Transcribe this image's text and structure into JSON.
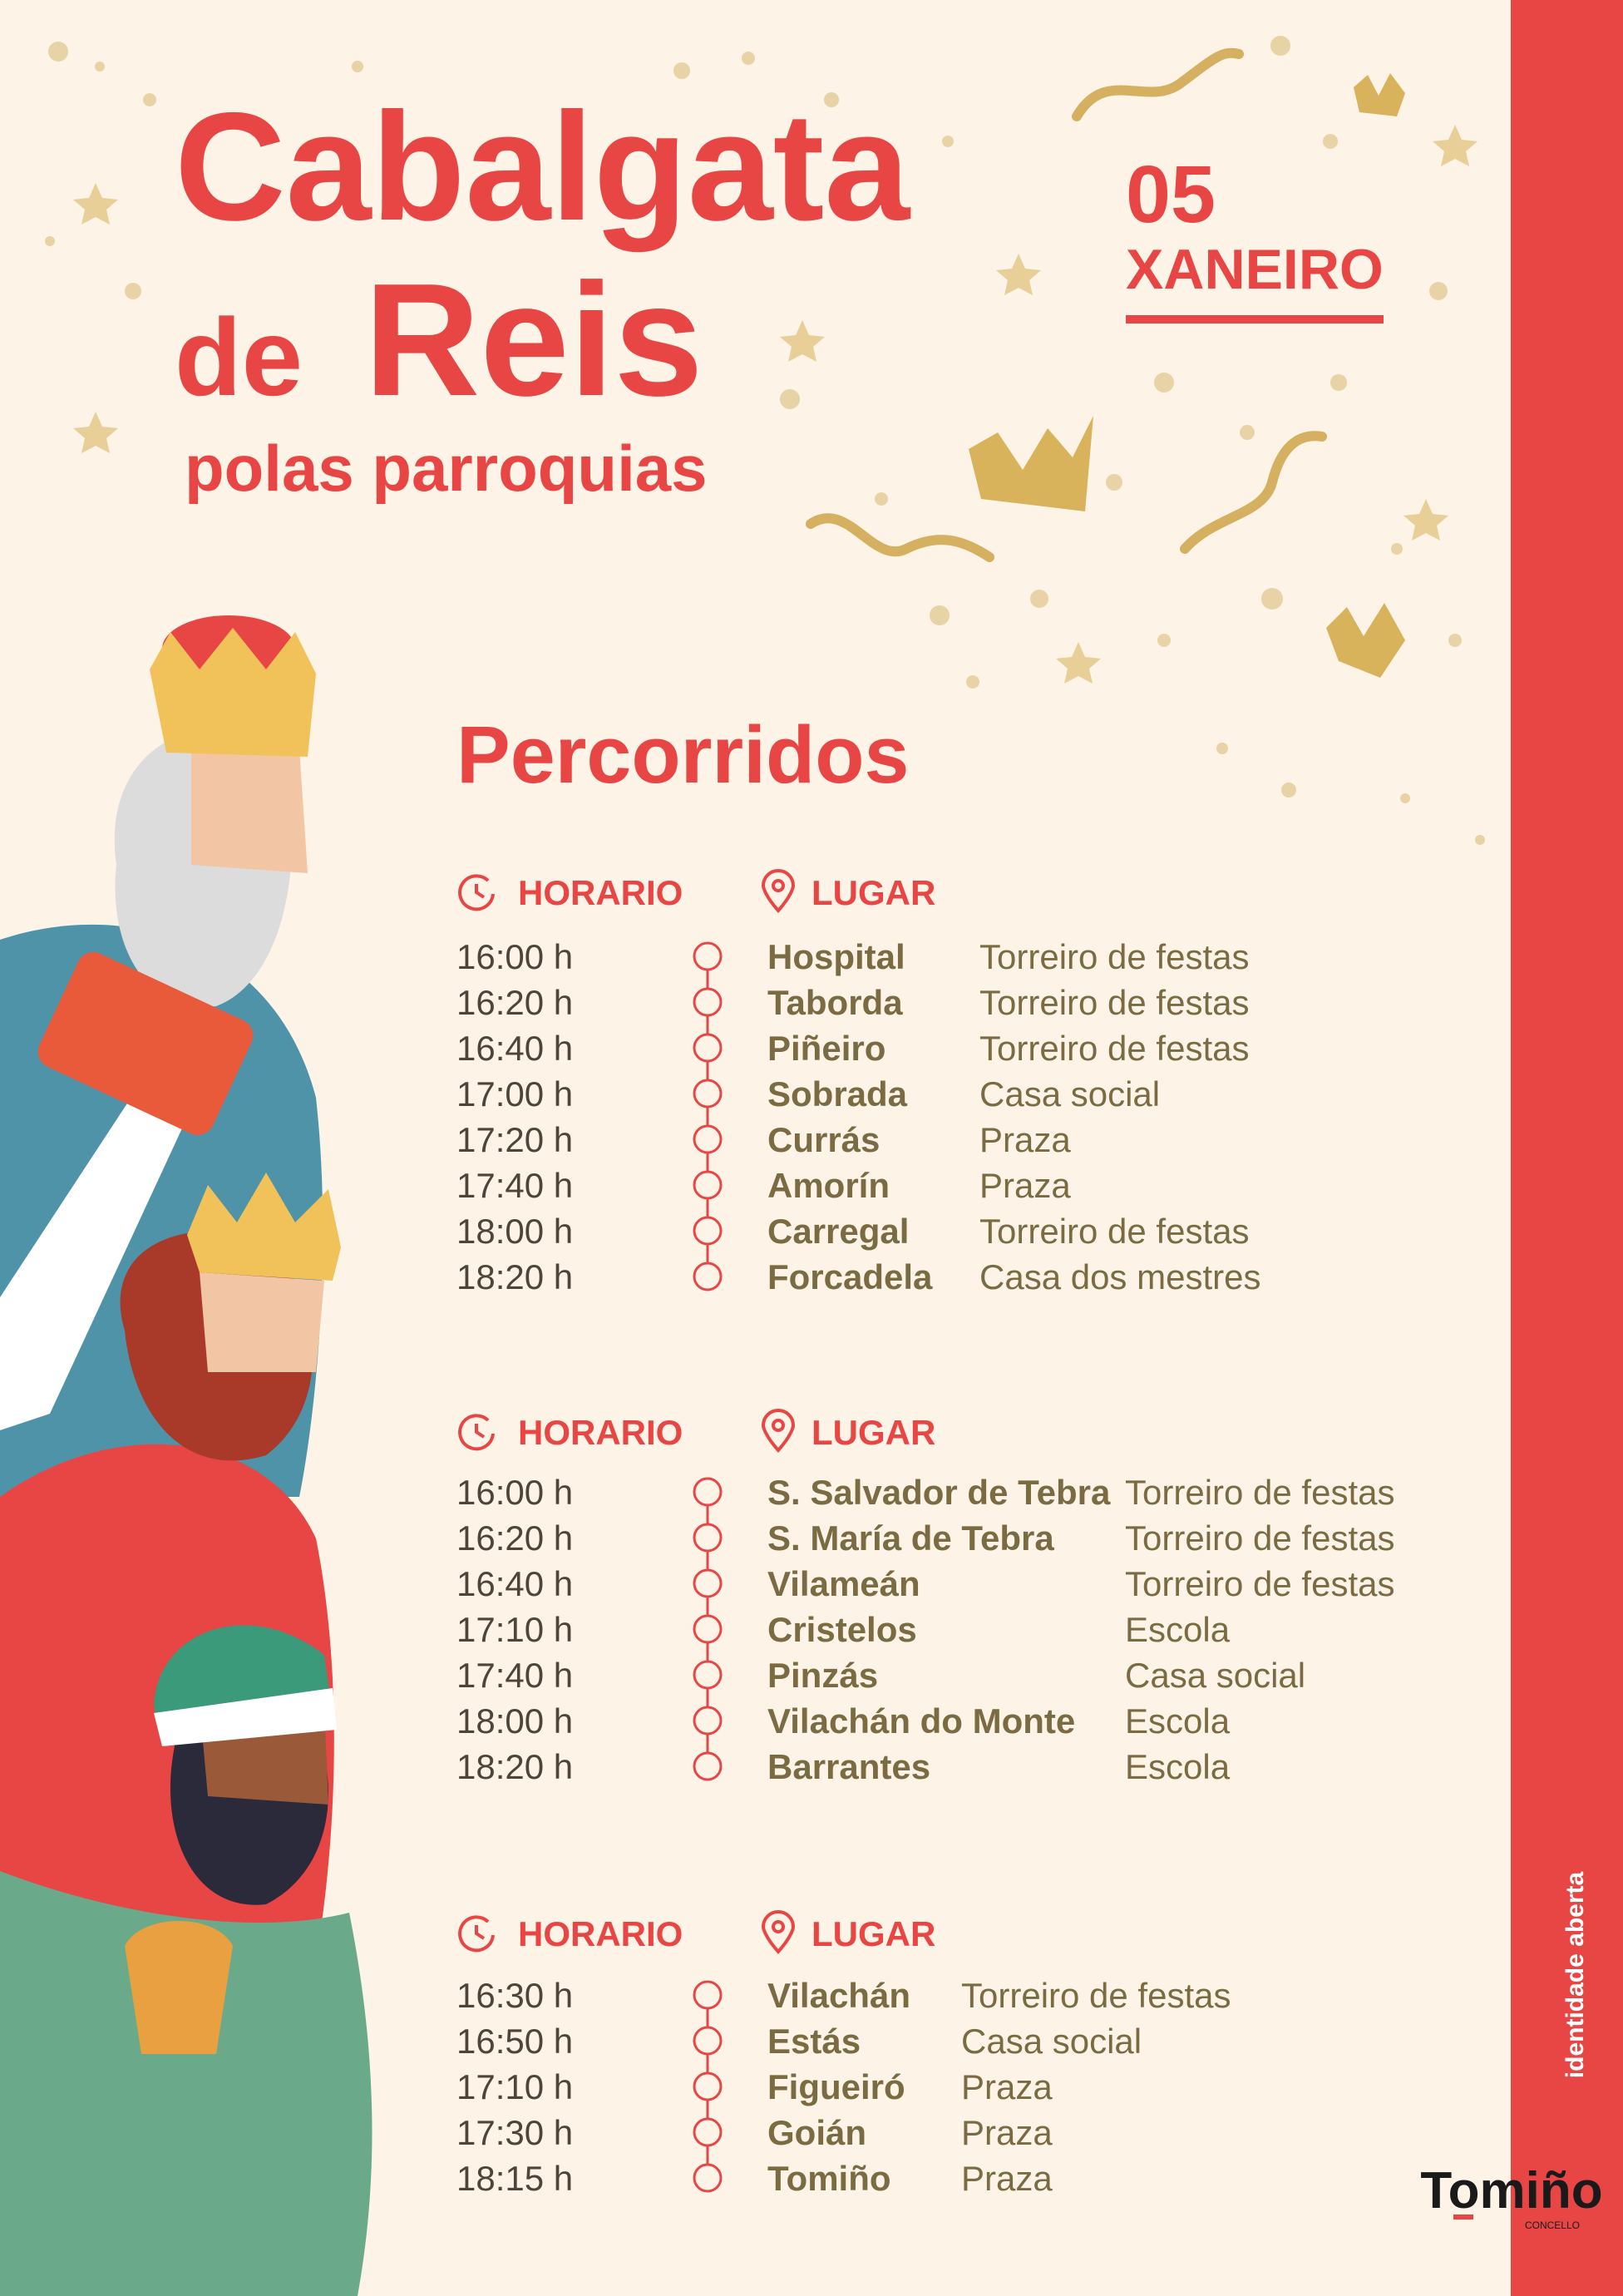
{
  "header": {
    "title_line1": "Cabalgata",
    "title_de": "de",
    "title_reis": "Reis",
    "subtitle": "polas parroquias",
    "date_day": "05",
    "date_month": "XANEIRO"
  },
  "routes_title": "Percorridos",
  "sections": [
    {
      "col_time": "HORARIO",
      "col_place": "LUGAR",
      "rows": [
        [
          "16:00 h",
          "Hospital",
          "Torreiro de festas"
        ],
        [
          "16:20 h",
          "Taborda",
          "Torreiro de festas"
        ],
        [
          "16:40 h",
          "Piñeiro",
          "Torreiro de festas"
        ],
        [
          "17:00 h",
          "Sobrada",
          "Casa social"
        ],
        [
          "17:20 h",
          "Currás",
          "Praza"
        ],
        [
          "17:40 h",
          "Amorín",
          "Praza"
        ],
        [
          "18:00 h",
          "Carregal",
          "Torreiro de festas"
        ],
        [
          "18:20 h",
          "Forcadela",
          "Casa dos mestres"
        ]
      ]
    },
    {
      "col_time": "HORARIO",
      "col_place": "LUGAR",
      "rows": [
        [
          "16:00 h",
          "S. Salvador de Tebra",
          "Torreiro de festas"
        ],
        [
          "16:20 h",
          "S. María de Tebra",
          "Torreiro de festas"
        ],
        [
          "16:40 h",
          "Vilameán",
          "Torreiro de festas"
        ],
        [
          "17:10 h",
          "Cristelos",
          "Escola"
        ],
        [
          "17:40 h",
          "Pinzás",
          "Casa social"
        ],
        [
          "18:00 h",
          "Vilachán do Monte",
          "Escola"
        ],
        [
          "18:20 h",
          "Barrantes",
          "Escola"
        ]
      ]
    },
    {
      "col_time": "HORARIO",
      "col_place": "LUGAR",
      "rows": [
        [
          "16:30 h",
          "Vilachán",
          "Torreiro de festas"
        ],
        [
          "16:50 h",
          "Estás",
          "Casa social"
        ],
        [
          "17:10 h",
          "Figueiró",
          "Praza"
        ],
        [
          "17:30 h",
          "Goián",
          "Praza"
        ],
        [
          "18:15 h",
          "Tomiño",
          "Praza"
        ]
      ]
    }
  ],
  "side_text": "identidade aberta",
  "brand": {
    "name": "Tomiño",
    "sub": "CONCELLO"
  }
}
